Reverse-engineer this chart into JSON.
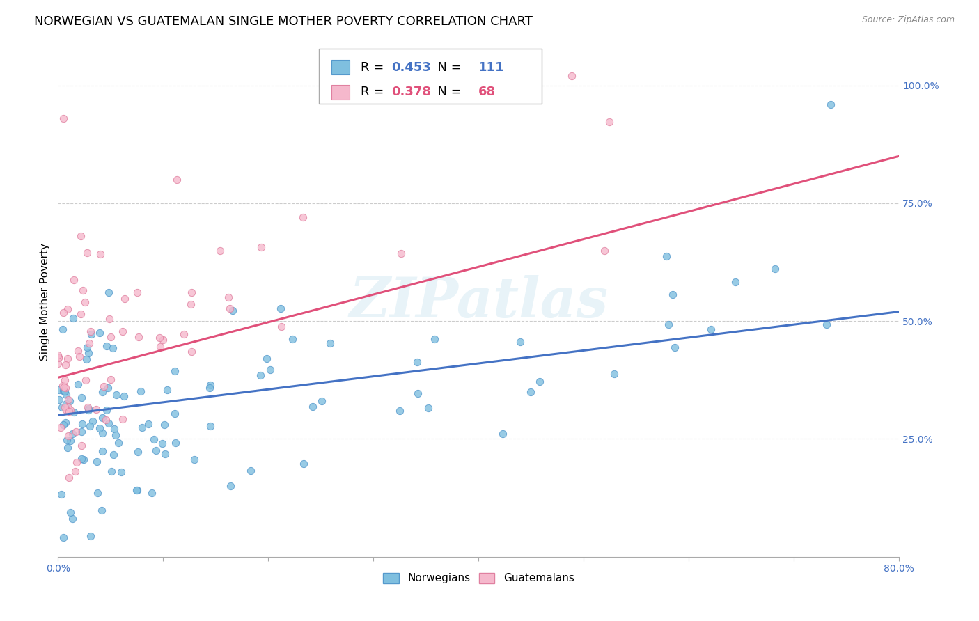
{
  "title": "NORWEGIAN VS GUATEMALAN SINGLE MOTHER POVERTY CORRELATION CHART",
  "source": "Source: ZipAtlas.com",
  "ylabel": "Single Mother Poverty",
  "xlim": [
    0.0,
    0.8
  ],
  "ylim": [
    0.0,
    1.08
  ],
  "ytick_positions": [
    0.25,
    0.5,
    0.75,
    1.0
  ],
  "norwegian_color": "#7fbfdf",
  "guatemalan_color": "#f5b8cc",
  "norwegian_edge": "#5599cc",
  "guatemalan_edge": "#e080a0",
  "trend_norwegian_color": "#4472c4",
  "trend_guatemalan_color": "#e0507a",
  "R_norwegian": 0.453,
  "N_norwegian": 111,
  "R_guatemalan": 0.378,
  "N_guatemalan": 68,
  "watermark": "ZIPatlas",
  "marker_size": 55,
  "title_fontsize": 13,
  "axis_label_fontsize": 11,
  "tick_fontsize": 10,
  "legend_fontsize": 13
}
